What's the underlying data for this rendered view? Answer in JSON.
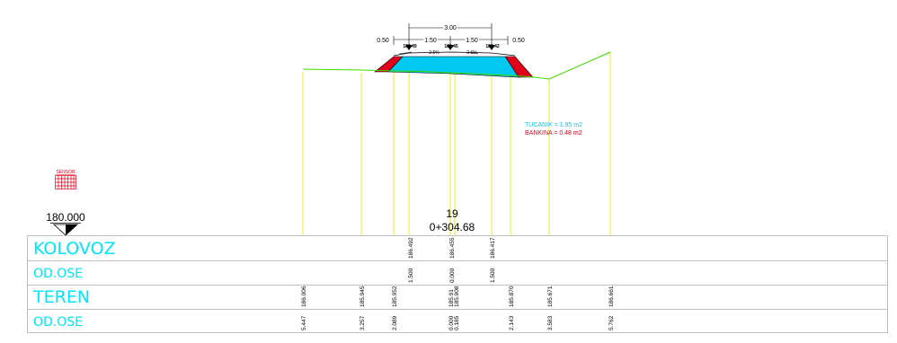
{
  "colors": {
    "background": "#ffffff",
    "terrain": "#3ddc00",
    "verticals": "#e8ee2a",
    "tucanik": "#00c8f0",
    "bankina": "#e0001a",
    "dimension": "#000000",
    "table_text_cyan": "#00e5ff",
    "grid": "#bfbfbf"
  },
  "dimensions": {
    "total_width": "3.00",
    "left_shoulder": "0.50",
    "left_lane": "1.50",
    "right_lane": "1.50",
    "right_shoulder": "0.50",
    "left_slope": "2.5%",
    "right_slope": "2.5%",
    "elev_left": "186.49",
    "elev_center": "186.45",
    "elev_right": "186.42"
  },
  "areas": {
    "tucanik": "TUCANIK = 1.95 m2",
    "bankina": "BANKINA = 0.48 m2"
  },
  "sensor": {
    "label": "SENSOR",
    "icon": "sensor-grid-icon"
  },
  "datum": {
    "value": "180.000",
    "icon": "datum-triangle-icon"
  },
  "station": {
    "number": "19",
    "chainage": "0+304.68"
  },
  "table": {
    "rows": [
      {
        "label": "KOLOVOZ"
      },
      {
        "label": "OD.OSE"
      },
      {
        "label": "TEREN"
      },
      {
        "label": "OD.OSE"
      }
    ],
    "kolovoz": [
      {
        "value": "186.492"
      },
      {
        "value": "186.455"
      },
      {
        "value": "186.417"
      }
    ],
    "kolovoz_offsets": [
      {
        "value": "1.500"
      },
      {
        "value": "0.000"
      },
      {
        "value": "1.500"
      }
    ],
    "teren": [
      {
        "value": "186.006"
      },
      {
        "value": "185.945"
      },
      {
        "value": "185.952"
      },
      {
        "value": "185.91"
      },
      {
        "value": "185.908"
      },
      {
        "value": "185.870"
      },
      {
        "value": "185.671"
      },
      {
        "value": "186.661"
      }
    ],
    "teren_offsets": [
      {
        "value": "5.447"
      },
      {
        "value": "3.257"
      },
      {
        "value": "2.089"
      },
      {
        "value": "0.000"
      },
      {
        "value": "0.185"
      },
      {
        "value": "2.143"
      },
      {
        "value": "3.583"
      },
      {
        "value": "5.762"
      }
    ]
  }
}
